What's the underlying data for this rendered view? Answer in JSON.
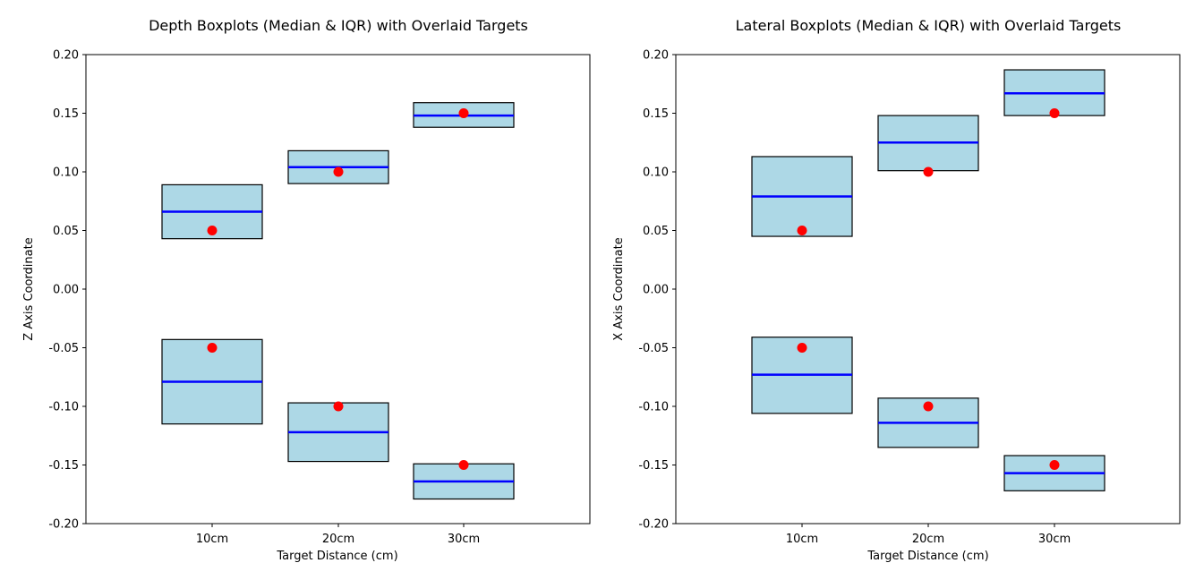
{
  "chart_data": [
    {
      "type": "box",
      "title": "Depth Boxplots (Median & IQR) with Overlaid Targets",
      "xlabel": "Target Distance (cm)",
      "ylabel": "Z Axis Coordinate",
      "categories": [
        "10cm",
        "20cm",
        "30cm"
      ],
      "ylim": [
        -0.2,
        0.2
      ],
      "yticks": [
        "-0.20",
        "-0.15",
        "-0.10",
        "-0.05",
        "0.00",
        "0.05",
        "0.10",
        "0.15",
        "0.20"
      ],
      "grid": false,
      "boxes": [
        {
          "category": "10cm",
          "q1": 0.043,
          "median": 0.066,
          "q3": 0.089
        },
        {
          "category": "10cm",
          "q1": -0.115,
          "median": -0.079,
          "q3": -0.043
        },
        {
          "category": "20cm",
          "q1": 0.09,
          "median": 0.104,
          "q3": 0.118
        },
        {
          "category": "20cm",
          "q1": -0.147,
          "median": -0.122,
          "q3": -0.097
        },
        {
          "category": "30cm",
          "q1": 0.138,
          "median": 0.148,
          "q3": 0.159
        },
        {
          "category": "30cm",
          "q1": -0.179,
          "median": -0.164,
          "q3": -0.149
        }
      ],
      "targets": [
        {
          "category": "10cm",
          "value": 0.05
        },
        {
          "category": "10cm",
          "value": -0.05
        },
        {
          "category": "20cm",
          "value": 0.1
        },
        {
          "category": "20cm",
          "value": -0.1
        },
        {
          "category": "30cm",
          "value": 0.15
        },
        {
          "category": "30cm",
          "value": -0.15
        }
      ]
    },
    {
      "type": "box",
      "title": "Lateral Boxplots (Median & IQR) with Overlaid Targets",
      "xlabel": "Target Distance (cm)",
      "ylabel": "X Axis Coordinate",
      "categories": [
        "10cm",
        "20cm",
        "30cm"
      ],
      "ylim": [
        -0.2,
        0.2
      ],
      "yticks": [
        "-0.20",
        "-0.15",
        "-0.10",
        "-0.05",
        "0.00",
        "0.05",
        "0.10",
        "0.15",
        "0.20"
      ],
      "grid": false,
      "boxes": [
        {
          "category": "10cm",
          "q1": 0.045,
          "median": 0.079,
          "q3": 0.113
        },
        {
          "category": "10cm",
          "q1": -0.106,
          "median": -0.073,
          "q3": -0.041
        },
        {
          "category": "20cm",
          "q1": 0.101,
          "median": 0.125,
          "q3": 0.148
        },
        {
          "category": "20cm",
          "q1": -0.135,
          "median": -0.114,
          "q3": -0.093
        },
        {
          "category": "30cm",
          "q1": 0.148,
          "median": 0.167,
          "q3": 0.187
        },
        {
          "category": "30cm",
          "q1": -0.172,
          "median": -0.157,
          "q3": -0.142
        }
      ],
      "targets": [
        {
          "category": "10cm",
          "value": 0.05
        },
        {
          "category": "10cm",
          "value": -0.05
        },
        {
          "category": "20cm",
          "value": 0.1
        },
        {
          "category": "20cm",
          "value": -0.1
        },
        {
          "category": "30cm",
          "value": 0.15
        },
        {
          "category": "30cm",
          "value": -0.15
        }
      ]
    }
  ],
  "colors": {
    "box_fill": "#add8e6",
    "box_edge": "#000000",
    "median": "#0000ff",
    "target": "#ff0000"
  }
}
